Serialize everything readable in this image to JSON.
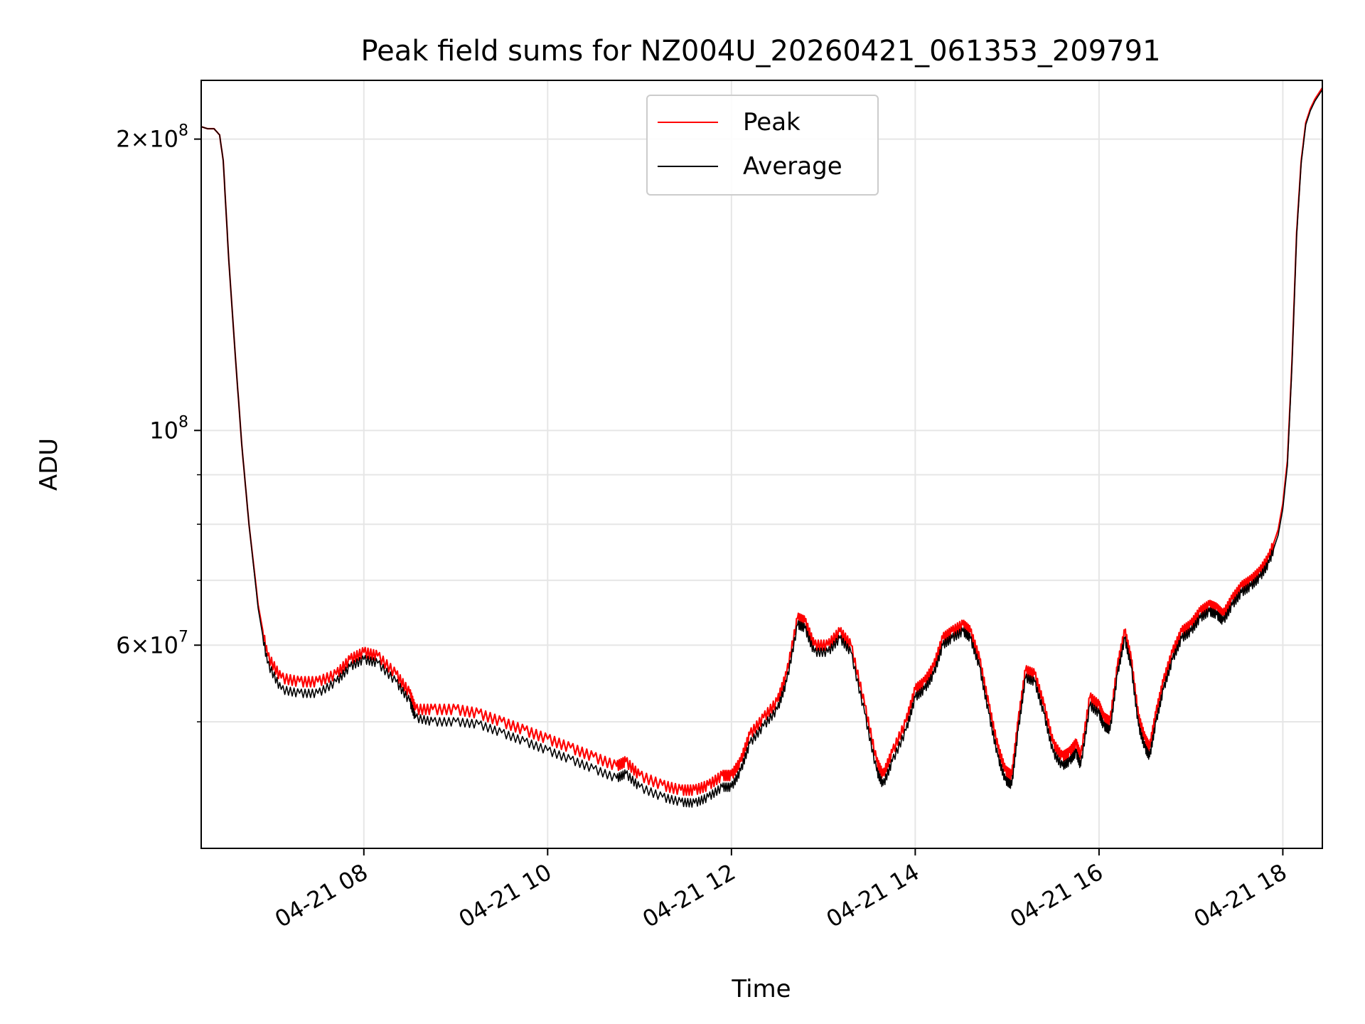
{
  "chart_data": {
    "type": "line",
    "title": "Peak field sums for NZ004U_20260421_061353_209791",
    "xlabel": "Time",
    "ylabel": "ADU",
    "x_unit": "hours (2026-04-21, local clock)",
    "xlim": [
      6.23,
      18.43
    ],
    "ylim": [
      37000000,
      230000000
    ],
    "y_scale": "log",
    "grid": true,
    "legend": "upper center",
    "x_ticks": [
      {
        "value": 8,
        "label": "04-21 08"
      },
      {
        "value": 10,
        "label": "04-21 10"
      },
      {
        "value": 12,
        "label": "04-21 12"
      },
      {
        "value": 14,
        "label": "04-21 14"
      },
      {
        "value": 16,
        "label": "04-21 16"
      },
      {
        "value": 18,
        "label": "04-21 18"
      }
    ],
    "y_ticks": [
      {
        "value": 200000000,
        "base": "2×10",
        "exp": "8"
      },
      {
        "value": 100000000,
        "base": "10",
        "exp": "8"
      },
      {
        "value": 60000000,
        "base": "6×10",
        "exp": "7"
      }
    ],
    "y_minor_ticks": [
      50000000,
      70000000,
      80000000,
      90000000
    ],
    "series": [
      {
        "name": "Peak",
        "color": "#ff0000",
        "x": [
          6.23,
          6.3,
          6.37,
          6.43,
          6.47,
          6.53,
          6.6,
          6.67,
          6.75,
          6.85,
          6.95,
          7.1,
          7.3,
          7.5,
          7.7,
          7.85,
          8.0,
          8.15,
          8.35,
          8.5,
          8.56,
          8.75,
          9.0,
          9.25,
          9.5,
          9.75,
          10.0,
          10.25,
          10.5,
          10.75,
          10.85,
          11.0,
          11.25,
          11.45,
          11.6,
          11.75,
          11.9,
          12.0,
          12.1,
          12.2,
          12.35,
          12.5,
          12.6,
          12.72,
          12.8,
          12.9,
          13.05,
          13.18,
          13.3,
          13.45,
          13.58,
          13.65,
          13.75,
          13.9,
          14.0,
          14.1,
          14.2,
          14.3,
          14.4,
          14.52,
          14.6,
          14.7,
          14.8,
          14.9,
          14.98,
          15.05,
          15.12,
          15.2,
          15.3,
          15.4,
          15.5,
          15.6,
          15.68,
          15.75,
          15.8,
          15.9,
          16.0,
          16.05,
          16.12,
          16.2,
          16.28,
          16.35,
          16.43,
          16.5,
          16.55,
          16.62,
          16.7,
          16.8,
          16.9,
          17.0,
          17.1,
          17.2,
          17.28,
          17.35,
          17.45,
          17.55,
          17.65,
          17.75,
          17.85,
          17.95,
          18.0,
          18.05,
          18.1,
          18.15,
          18.2,
          18.25,
          18.3,
          18.35,
          18.43
        ],
        "y": [
          206000000,
          205000000,
          205000000,
          202000000,
          190000000,
          150000000,
          120000000,
          97000000,
          80000000,
          66000000,
          58500000,
          55500000,
          55000000,
          55000000,
          56000000,
          58000000,
          59000000,
          58500000,
          56000000,
          53500000,
          51500000,
          51500000,
          51500000,
          51000000,
          50000000,
          49000000,
          48000000,
          47000000,
          46000000,
          45000000,
          45500000,
          44000000,
          43000000,
          42500000,
          42500000,
          43000000,
          44000000,
          44000000,
          45500000,
          48500000,
          50500000,
          52500000,
          56000000,
          64000000,
          63500000,
          60000000,
          60000000,
          62000000,
          60000000,
          52000000,
          45500000,
          44000000,
          46500000,
          50000000,
          54000000,
          55000000,
          57000000,
          61000000,
          62000000,
          63000000,
          62000000,
          58000000,
          52000000,
          47000000,
          44500000,
          44000000,
          50000000,
          56500000,
          56000000,
          52000000,
          47500000,
          46000000,
          46500000,
          47500000,
          46000000,
          53000000,
          52000000,
          50500000,
          50000000,
          57000000,
          62000000,
          58000000,
          50500000,
          48000000,
          47000000,
          51000000,
          55000000,
          59000000,
          62000000,
          63000000,
          65000000,
          66000000,
          65500000,
          64500000,
          67000000,
          69000000,
          70000000,
          71500000,
          74000000,
          79000000,
          84000000,
          93000000,
          118000000,
          160000000,
          190000000,
          208000000,
          215000000,
          220000000,
          226000000
        ]
      },
      {
        "name": "Average",
        "color": "#000000",
        "x": [
          6.23,
          6.3,
          6.37,
          6.43,
          6.47,
          6.53,
          6.6,
          6.67,
          6.75,
          6.85,
          6.95,
          7.1,
          7.3,
          7.5,
          7.7,
          7.85,
          8.0,
          8.15,
          8.35,
          8.5,
          8.56,
          8.75,
          9.0,
          9.25,
          9.5,
          9.75,
          10.0,
          10.25,
          10.5,
          10.75,
          10.85,
          11.0,
          11.25,
          11.45,
          11.6,
          11.75,
          11.9,
          12.0,
          12.1,
          12.2,
          12.35,
          12.5,
          12.6,
          12.72,
          12.8,
          12.9,
          13.05,
          13.18,
          13.3,
          13.45,
          13.58,
          13.65,
          13.75,
          13.9,
          14.0,
          14.1,
          14.2,
          14.3,
          14.4,
          14.52,
          14.6,
          14.7,
          14.8,
          14.9,
          14.98,
          15.05,
          15.12,
          15.2,
          15.3,
          15.4,
          15.5,
          15.6,
          15.68,
          15.75,
          15.8,
          15.9,
          16.0,
          16.05,
          16.12,
          16.2,
          16.28,
          16.35,
          16.43,
          16.5,
          16.55,
          16.62,
          16.7,
          16.8,
          16.9,
          17.0,
          17.1,
          17.2,
          17.28,
          17.35,
          17.45,
          17.55,
          17.65,
          17.75,
          17.85,
          17.95,
          18.0,
          18.05,
          18.1,
          18.15,
          18.2,
          18.25,
          18.3,
          18.35,
          18.43
        ],
        "y": [
          206000000,
          205000000,
          205000000,
          202000000,
          190000000,
          150000000,
          120000000,
          97000000,
          80000000,
          65500000,
          57500000,
          54000000,
          53500000,
          53500000,
          55000000,
          57000000,
          58000000,
          57500000,
          55000000,
          52500000,
          50500000,
          50000000,
          50000000,
          49700000,
          48700000,
          47700000,
          46700000,
          45700000,
          44700000,
          43700000,
          44200000,
          42800000,
          41800000,
          41300000,
          41200000,
          41800000,
          42800000,
          42800000,
          44500000,
          47500000,
          49500000,
          51500000,
          55000000,
          63000000,
          62500000,
          59000000,
          59000000,
          61000000,
          59000000,
          51000000,
          44500000,
          43000000,
          45500000,
          49000000,
          53000000,
          54000000,
          56000000,
          60000000,
          61000000,
          62000000,
          61000000,
          57000000,
          51000000,
          46000000,
          43500000,
          43000000,
          49000000,
          55500000,
          55000000,
          51000000,
          46500000,
          45000000,
          45500000,
          46500000,
          45000000,
          52000000,
          51000000,
          49500000,
          49000000,
          56000000,
          61000000,
          57000000,
          49500000,
          47000000,
          46000000,
          50000000,
          54000000,
          58000000,
          61000000,
          62000000,
          64000000,
          65000000,
          64500000,
          63500000,
          66000000,
          68000000,
          69000000,
          70500000,
          73000000,
          78000000,
          83000000,
          92000000,
          117000000,
          159000000,
          189000000,
          207000000,
          214000000,
          219000000,
          225000000
        ]
      }
    ]
  }
}
